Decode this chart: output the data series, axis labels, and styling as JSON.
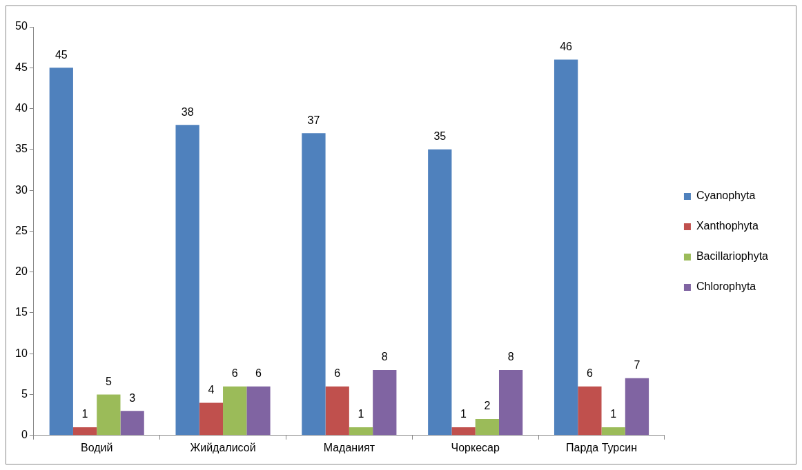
{
  "chart_data": {
    "type": "bar",
    "categories": [
      "Водий",
      "Жийдалисой",
      "Маданият",
      "Чоркесар",
      "Парда Турсин"
    ],
    "series": [
      {
        "name": "Cyanophyta",
        "color": "#4f81bd",
        "values": [
          45,
          38,
          37,
          35,
          46
        ]
      },
      {
        "name": "Xanthophyta",
        "color": "#c0504d",
        "values": [
          1,
          4,
          6,
          1,
          6
        ]
      },
      {
        "name": "Bacillariophyta",
        "color": "#9bbb59",
        "values": [
          5,
          6,
          1,
          2,
          1
        ]
      },
      {
        "name": "Chlorophyta",
        "color": "#8064a2",
        "values": [
          3,
          6,
          8,
          8,
          7
        ]
      }
    ],
    "ylim": [
      0,
      50
    ],
    "yticks": [
      0,
      5,
      10,
      15,
      20,
      25,
      30,
      35,
      40,
      45,
      50
    ],
    "grid": false,
    "legend": "right",
    "data_labels": true
  }
}
